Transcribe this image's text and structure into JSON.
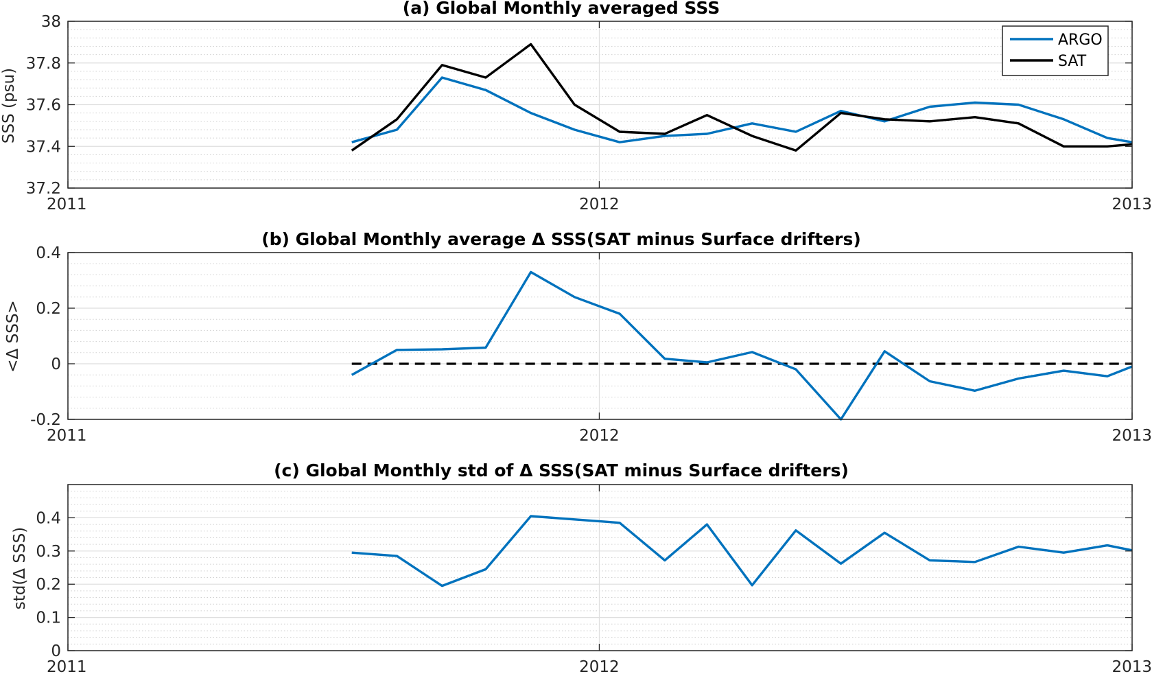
{
  "chart_data": [
    {
      "type": "line",
      "title": "(a) Global Monthly averaged SSS",
      "xlabel": "",
      "ylabel": "SSS (psu)",
      "xlim": [
        "2011-01-01",
        "2013-01-01"
      ],
      "ylim": [
        37.2,
        38
      ],
      "yticks": [
        "37.2",
        "37.4",
        "37.6",
        "37.8",
        "38"
      ],
      "ytick_values": [
        37.2,
        37.4,
        37.6,
        37.8,
        38
      ],
      "xticks": [
        "2011",
        "2012",
        "2013"
      ],
      "grid": true,
      "legend_position": "top-right",
      "x": [
        "2011-07-15",
        "2011-08-15",
        "2011-09-15",
        "2011-10-15",
        "2011-11-15",
        "2011-12-15",
        "2012-01-15",
        "2012-02-15",
        "2012-03-15",
        "2012-04-15",
        "2012-05-15",
        "2012-06-15",
        "2012-07-15",
        "2012-08-15",
        "2012-09-15",
        "2012-10-15",
        "2012-11-15",
        "2012-12-15",
        "2013-01-01"
      ],
      "series": [
        {
          "name": "ARGO",
          "color": "#0072bd",
          "values": [
            37.42,
            37.48,
            37.73,
            37.67,
            37.56,
            37.48,
            37.42,
            37.45,
            37.46,
            37.51,
            37.47,
            37.57,
            37.52,
            37.59,
            37.61,
            37.6,
            37.53,
            37.44,
            37.42
          ]
        },
        {
          "name": "SAT",
          "color": "#000000",
          "values": [
            37.38,
            37.53,
            37.79,
            37.73,
            37.89,
            37.6,
            37.47,
            37.46,
            37.55,
            37.45,
            37.38,
            37.56,
            37.53,
            37.52,
            37.54,
            37.51,
            37.4,
            37.4,
            37.41
          ]
        }
      ]
    },
    {
      "type": "line",
      "title": "(b) Global Monthly average Δ SSS(SAT minus Surface drifters)",
      "xlabel": "",
      "ylabel": "<Δ SSS>",
      "xlim": [
        "2011-01-01",
        "2013-01-01"
      ],
      "ylim": [
        -0.2,
        0.4
      ],
      "yticks": [
        "-0.2",
        "0",
        "0.2",
        "0.4"
      ],
      "ytick_values": [
        -0.2,
        0,
        0.2,
        0.4
      ],
      "xticks": [
        "2011",
        "2012",
        "2013"
      ],
      "grid": true,
      "reference_line": {
        "y": 0,
        "style": "dashed",
        "color": "#000000",
        "x_start": "2011-07-15"
      },
      "x": [
        "2011-07-15",
        "2011-08-15",
        "2011-09-15",
        "2011-10-15",
        "2011-11-15",
        "2011-12-15",
        "2012-01-15",
        "2012-02-15",
        "2012-03-15",
        "2012-04-15",
        "2012-05-15",
        "2012-06-15",
        "2012-07-15",
        "2012-08-15",
        "2012-09-15",
        "2012-10-15",
        "2012-11-15",
        "2012-12-15",
        "2013-01-01"
      ],
      "series": [
        {
          "color": "#0072bd",
          "values": [
            -0.04,
            0.05,
            0.052,
            0.058,
            0.33,
            0.24,
            0.18,
            0.018,
            0.005,
            0.042,
            -0.02,
            -0.2,
            0.045,
            -0.063,
            -0.097,
            -0.053,
            -0.025,
            -0.045,
            -0.01
          ]
        }
      ]
    },
    {
      "type": "line",
      "title": "(c) Global Monthly std of Δ SSS(SAT minus Surface drifters)",
      "xlabel": "",
      "ylabel": "std(Δ SSS)",
      "xlim": [
        "2011-01-01",
        "2013-01-01"
      ],
      "ylim": [
        0,
        0.5
      ],
      "yticks": [
        "0",
        "0.1",
        "0.2",
        "0.3",
        "0.4"
      ],
      "ytick_values": [
        0,
        0.1,
        0.2,
        0.3,
        0.4
      ],
      "xticks": [
        "2011",
        "2012",
        "2013"
      ],
      "grid": true,
      "x": [
        "2011-07-15",
        "2011-08-15",
        "2011-09-15",
        "2011-10-15",
        "2011-11-15",
        "2011-12-15",
        "2012-01-15",
        "2012-02-15",
        "2012-03-15",
        "2012-04-15",
        "2012-05-15",
        "2012-06-15",
        "2012-07-15",
        "2012-08-15",
        "2012-09-15",
        "2012-10-15",
        "2012-11-15",
        "2012-12-15",
        "2013-01-01"
      ],
      "series": [
        {
          "color": "#0072bd",
          "values": [
            0.295,
            0.285,
            0.195,
            0.245,
            0.405,
            0.395,
            0.385,
            0.272,
            0.38,
            0.197,
            0.362,
            0.262,
            0.355,
            0.272,
            0.267,
            0.313,
            0.295,
            0.317,
            0.302
          ]
        }
      ]
    }
  ]
}
